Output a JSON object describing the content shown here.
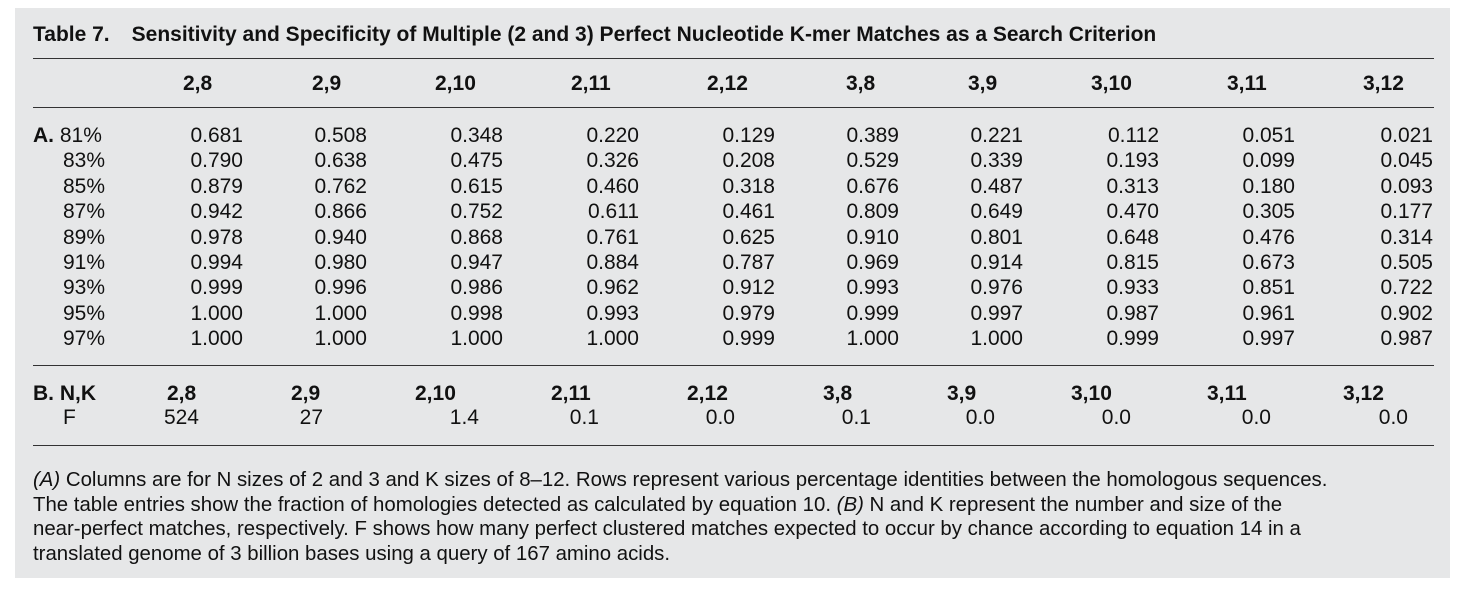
{
  "title": {
    "label": "Table 7.",
    "text": "Sensitivity and Specificity of Multiple (2 and 3) Perfect Nucleotide K-mer Matches as a Search Criterion"
  },
  "columns": [
    "2,8",
    "2,9",
    "2,10",
    "2,11",
    "2,12",
    "3,8",
    "3,9",
    "3,10",
    "3,11",
    "3,12"
  ],
  "section_a": {
    "label": "A.",
    "rows": [
      "81%",
      "83%",
      "85%",
      "87%",
      "89%",
      "91%",
      "93%",
      "95%",
      "97%"
    ],
    "values": [
      [
        "0.681",
        "0.790",
        "0.879",
        "0.942",
        "0.978",
        "0.994",
        "0.999",
        "1.000",
        "1.000"
      ],
      [
        "0.508",
        "0.638",
        "0.762",
        "0.866",
        "0.940",
        "0.980",
        "0.996",
        "1.000",
        "1.000"
      ],
      [
        "0.348",
        "0.475",
        "0.615",
        "0.752",
        "0.868",
        "0.947",
        "0.986",
        "0.998",
        "1.000"
      ],
      [
        "0.220",
        "0.326",
        "0.460",
        "0.611",
        "0.761",
        "0.884",
        "0.962",
        "0.993",
        "1.000"
      ],
      [
        "0.129",
        "0.208",
        "0.318",
        "0.461",
        "0.625",
        "0.787",
        "0.912",
        "0.979",
        "0.999"
      ],
      [
        "0.389",
        "0.529",
        "0.676",
        "0.809",
        "0.910",
        "0.969",
        "0.993",
        "0.999",
        "1.000"
      ],
      [
        "0.221",
        "0.339",
        "0.487",
        "0.649",
        "0.801",
        "0.914",
        "0.976",
        "0.997",
        "1.000"
      ],
      [
        "0.112",
        "0.193",
        "0.313",
        "0.470",
        "0.648",
        "0.815",
        "0.933",
        "0.987",
        "0.999"
      ],
      [
        "0.051",
        "0.099",
        "0.180",
        "0.305",
        "0.476",
        "0.673",
        "0.851",
        "0.961",
        "0.997"
      ],
      [
        "0.021",
        "0.045",
        "0.093",
        "0.177",
        "0.314",
        "0.505",
        "0.722",
        "0.902",
        "0.987"
      ]
    ]
  },
  "section_b": {
    "label": "B. N,K",
    "f_label": "F",
    "nk": [
      "2,8",
      "2,9",
      "2,10",
      "2,11",
      "2,12",
      "3,8",
      "3,9",
      "3,10",
      "3,11",
      "3,12"
    ],
    "f": [
      "524",
      "27",
      "1.4",
      "0.1",
      "0.0",
      "0.1",
      "0.0",
      "0.0",
      "0.0",
      "0.0"
    ]
  },
  "footnote": {
    "a_marker": "(A)",
    "a_text_1": " Columns are for N sizes of 2 and 3 and K sizes of 8–12. Rows represent various percentage identities between the homologous sequences.",
    "a_text_2": "The table entries show the fraction of homologies detected as calculated by equation 10. ",
    "b_marker": "(B)",
    "b_text_1": " N and K represent the number and size of the",
    "b_text_2": "near-perfect matches, respectively. F shows how many perfect clustered matches expected to occur by chance according to equation 14 in a",
    "b_text_3": "translated genome of 3 billion bases using a query of 167 amino acids."
  }
}
